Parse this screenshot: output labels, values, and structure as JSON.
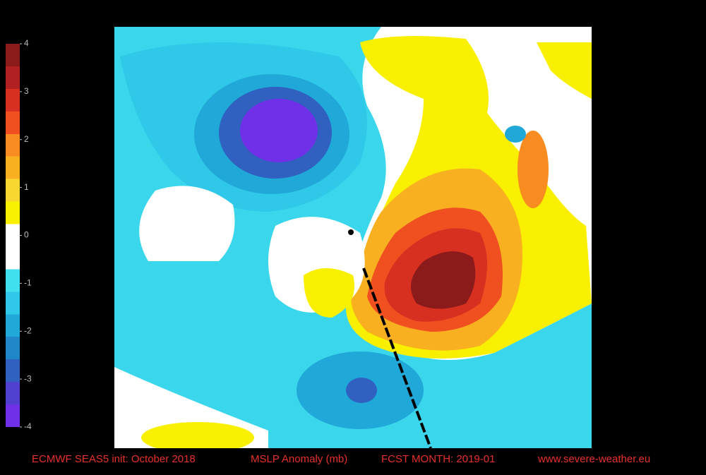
{
  "colorbar": {
    "lim": [
      -4,
      4
    ],
    "ticks": [
      4,
      3,
      2,
      1,
      0,
      -1,
      -2,
      -3,
      -4
    ],
    "colors": [
      "#8b1a1a",
      "#b02020",
      "#d83020",
      "#f05020",
      "#f88c20",
      "#f8b020",
      "#f8d830",
      "#f8f000",
      "#ffffff",
      "#ffffff",
      "#40e0f0",
      "#30c8e8",
      "#20a8d8",
      "#2088c8",
      "#3060c0",
      "#5040d0",
      "#7030e8"
    ]
  },
  "footer": [
    "ECMWF SEAS5  init: October 2018",
    "MSLP Anomaly (mb)",
    "FCST MONTH: 2019-01",
    "www.severe-weather.eu"
  ]
}
